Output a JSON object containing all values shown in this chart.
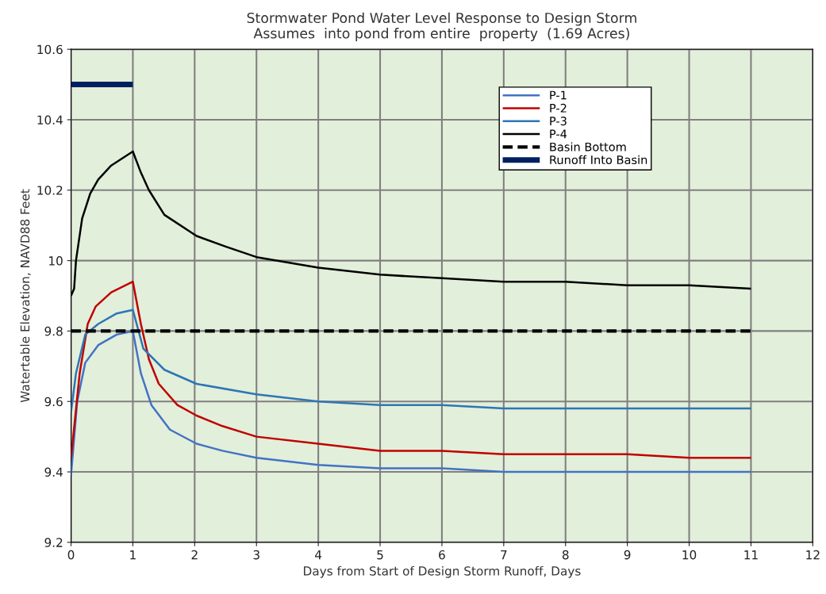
{
  "chart_data": {
    "type": "line",
    "title": "Stormwater Pond Water Level Response to Design Storm\nAssumes  into pond from entire  property  (1.69 Acres)",
    "xlabel": "Days from Start of Design Storm Runoff, Days",
    "ylabel": "Watertable Elevation, NAVD88 Feet",
    "xlim": [
      0,
      12
    ],
    "xticks": [
      0,
      1,
      2,
      3,
      4,
      5,
      6,
      7,
      8,
      9,
      10,
      11,
      12
    ],
    "ylim": [
      9.2,
      10.6
    ],
    "yticks": [
      9.2,
      9.4,
      9.6,
      9.8,
      10,
      10.2,
      10.4,
      10.6
    ],
    "grid": true,
    "legend": "top right",
    "marker": "none",
    "series": [
      {
        "name": "P-1",
        "color": "#4472c4",
        "line_style": "solid",
        "x": [
          0,
          0.1,
          0.23,
          0.44,
          0.74,
          1.0,
          1.13,
          1.3,
          1.6,
          2.03,
          2.45,
          3,
          4,
          5,
          6,
          7,
          8,
          9,
          10,
          11
        ],
        "values": [
          9.39,
          9.6,
          9.71,
          9.76,
          9.79,
          9.8,
          9.68,
          9.59,
          9.52,
          9.48,
          9.46,
          9.44,
          9.42,
          9.41,
          9.41,
          9.4,
          9.4,
          9.4,
          9.4,
          9.4
        ]
      },
      {
        "name": "P-2",
        "color": "#c00000",
        "line_style": "solid",
        "x": [
          0,
          0.14,
          0.27,
          0.4,
          0.65,
          1.0,
          1.13,
          1.26,
          1.42,
          1.72,
          2.03,
          2.45,
          3,
          4,
          5,
          6,
          7,
          8,
          9,
          10,
          11
        ],
        "values": [
          9.44,
          9.68,
          9.82,
          9.87,
          9.91,
          9.94,
          9.82,
          9.72,
          9.65,
          9.59,
          9.56,
          9.53,
          9.5,
          9.48,
          9.46,
          9.46,
          9.45,
          9.45,
          9.45,
          9.44,
          9.44
        ]
      },
      {
        "name": "P-3",
        "color": "#2e75b6",
        "line_style": "solid",
        "x": [
          0,
          0.08,
          0.23,
          0.44,
          0.74,
          1.0,
          1.17,
          1.51,
          2.03,
          3,
          4,
          5,
          6,
          7,
          8,
          9,
          10,
          11
        ],
        "values": [
          9.57,
          9.68,
          9.79,
          9.82,
          9.85,
          9.86,
          9.75,
          9.69,
          9.65,
          9.62,
          9.6,
          9.59,
          9.59,
          9.58,
          9.58,
          9.58,
          9.58,
          9.58
        ]
      },
      {
        "name": "P-4",
        "color": "#000000",
        "line_style": "solid",
        "x": [
          0,
          0.05,
          0.08,
          0.18,
          0.31,
          0.44,
          0.65,
          1.0,
          1.13,
          1.26,
          1.51,
          2.03,
          2.5,
          3,
          4,
          5,
          6,
          7,
          8,
          9,
          10,
          11
        ],
        "values": [
          9.9,
          9.92,
          10.0,
          10.12,
          10.19,
          10.23,
          10.27,
          10.31,
          10.25,
          10.2,
          10.13,
          10.07,
          10.04,
          10.01,
          9.98,
          9.96,
          9.95,
          9.94,
          9.94,
          9.93,
          9.93,
          9.92
        ]
      },
      {
        "name": "Basin Bottom",
        "color": "#000000",
        "line_style": "dashed",
        "x": [
          0,
          11
        ],
        "values": [
          9.8,
          9.8
        ]
      },
      {
        "name": "Runoff Into Basin",
        "color": "#002060",
        "line_style": "solid",
        "x": [
          0,
          1
        ],
        "values": [
          10.5,
          10.5
        ]
      }
    ]
  }
}
